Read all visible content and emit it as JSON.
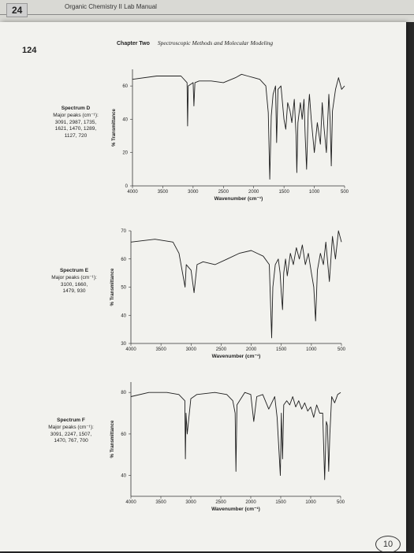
{
  "back_page": {
    "number": "24",
    "title": "Organic Chemistry II Lab Manual"
  },
  "page": {
    "number": "124",
    "chapter": "Chapter Two",
    "section": "Spectroscopic Methods and Molecular Modeling"
  },
  "handwritten_mark": "10",
  "charts": [
    {
      "label": "Spectrum D",
      "peaks_label": "Major peaks (cm⁻¹):",
      "peaks_line1": "3091, 2987, 1735,",
      "peaks_line2": "1621, 1470, 1289,",
      "peaks_line3": "1127, 720",
      "ylabel": "% Transmittance",
      "xlabel": "Wavenumber (cm⁻¹)",
      "xticks": [
        "4000",
        "3500",
        "3000",
        "2500",
        "2000",
        "1500",
        "1000",
        "500"
      ],
      "yticks": [
        "0",
        "20",
        "40",
        "60"
      ]
    },
    {
      "label": "Spectrum E",
      "peaks_label": "Major peaks (cm⁻¹):",
      "peaks_line1": "3100, 1660,",
      "peaks_line2": "1479, 930",
      "peaks_line3": "",
      "ylabel": "% Transmittance",
      "xlabel": "Wavenumber (cm⁻¹)",
      "xticks": [
        "4000",
        "3500",
        "3000",
        "2500",
        "2000",
        "1500",
        "1000",
        "500"
      ],
      "yticks": [
        "30",
        "40",
        "50",
        "60",
        "70"
      ]
    },
    {
      "label": "Spectrum F",
      "peaks_label": "Major peaks (cm⁻¹):",
      "peaks_line1": "3091, 2247, 1507,",
      "peaks_line2": "1470, 767, 700",
      "peaks_line3": "",
      "ylabel": "% Transmittance",
      "xlabel": "Wavenumber (cm⁻¹)",
      "xticks": [
        "4000",
        "3500",
        "3000",
        "2500",
        "2000",
        "1500",
        "1000",
        "500"
      ],
      "yticks": [
        "40",
        "60",
        "80"
      ]
    }
  ],
  "chart_data": [
    {
      "type": "line",
      "title": "",
      "xlabel": "Wavenumber (cm⁻¹)",
      "ylabel": "% Transmittance",
      "xlim": [
        4000,
        500
      ],
      "ylim": [
        0,
        70
      ],
      "series": [
        {
          "x": [
            4000,
            3600,
            3200,
            3100,
            3091,
            3080,
            3000,
            2987,
            2970,
            2900,
            2700,
            2500,
            2300,
            2200,
            2100,
            2000,
            1900,
            1800,
            1760,
            1735,
            1710,
            1680,
            1640,
            1621,
            1600,
            1550,
            1500,
            1470,
            1440,
            1400,
            1370,
            1330,
            1300,
            1289,
            1270,
            1230,
            1200,
            1170,
            1150,
            1127,
            1100,
            1080,
            1050,
            1000,
            950,
            900,
            870,
            840,
            800,
            760,
            740,
            720,
            700,
            650,
            600,
            550,
            500
          ],
          "y": [
            64,
            66,
            66,
            62,
            36,
            60,
            62,
            48,
            62,
            63,
            63,
            62,
            65,
            67,
            66,
            65,
            64,
            60,
            44,
            4,
            42,
            55,
            60,
            26,
            58,
            60,
            40,
            34,
            50,
            45,
            38,
            52,
            30,
            8,
            38,
            50,
            40,
            52,
            30,
            10,
            45,
            55,
            40,
            20,
            38,
            25,
            50,
            35,
            20,
            55,
            40,
            12,
            45,
            58,
            65,
            58,
            60
          ]
        }
      ]
    },
    {
      "type": "line",
      "title": "",
      "xlabel": "Wavenumber (cm⁻¹)",
      "ylabel": "% Transmittance",
      "xlim": [
        4000,
        500
      ],
      "ylim": [
        30,
        70
      ],
      "series": [
        {
          "x": [
            4000,
            3600,
            3300,
            3200,
            3100,
            3080,
            3000,
            2950,
            2900,
            2800,
            2600,
            2400,
            2200,
            2000,
            1900,
            1800,
            1700,
            1680,
            1660,
            1640,
            1600,
            1550,
            1520,
            1500,
            1479,
            1460,
            1430,
            1400,
            1350,
            1300,
            1250,
            1200,
            1150,
            1100,
            1050,
            1000,
            960,
            930,
            900,
            850,
            800,
            760,
            700,
            650,
            600,
            550,
            500
          ],
          "y": [
            66,
            67,
            66,
            62,
            50,
            58,
            56,
            48,
            58,
            59,
            58,
            60,
            62,
            63,
            62,
            61,
            58,
            45,
            32,
            50,
            58,
            60,
            55,
            48,
            42,
            55,
            60,
            54,
            62,
            58,
            64,
            60,
            65,
            58,
            62,
            55,
            50,
            38,
            56,
            62,
            58,
            66,
            52,
            68,
            60,
            70,
            66
          ]
        }
      ]
    },
    {
      "type": "line",
      "title": "",
      "xlabel": "Wavenumber (cm⁻¹)",
      "ylabel": "% Transmittance",
      "xlim": [
        4000,
        500
      ],
      "ylim": [
        30,
        85
      ],
      "series": [
        {
          "x": [
            4000,
            3700,
            3400,
            3200,
            3100,
            3091,
            3080,
            3060,
            3000,
            2950,
            2900,
            2600,
            2400,
            2300,
            2260,
            2247,
            2230,
            2100,
            2000,
            1950,
            1900,
            1800,
            1700,
            1600,
            1560,
            1507,
            1490,
            1470,
            1450,
            1400,
            1350,
            1300,
            1250,
            1200,
            1150,
            1100,
            1050,
            1000,
            950,
            900,
            850,
            800,
            767,
            740,
            720,
            700,
            680,
            650,
            600,
            550,
            500
          ],
          "y": [
            78,
            80,
            80,
            79,
            76,
            48,
            70,
            60,
            77,
            78,
            79,
            80,
            79,
            76,
            70,
            42,
            74,
            80,
            79,
            66,
            78,
            79,
            72,
            78,
            68,
            40,
            70,
            48,
            74,
            76,
            74,
            78,
            73,
            76,
            72,
            75,
            71,
            73,
            68,
            74,
            70,
            70,
            38,
            66,
            64,
            42,
            60,
            78,
            75,
            79,
            80
          ]
        }
      ]
    }
  ]
}
